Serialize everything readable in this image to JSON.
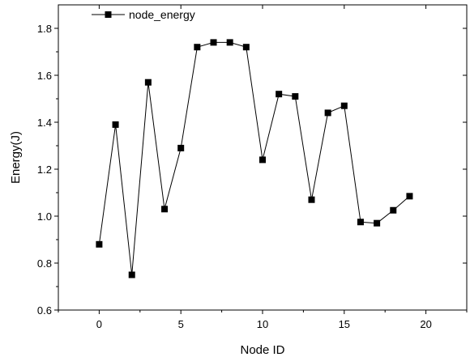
{
  "chart_data": {
    "type": "line",
    "xlabel": "Node ID",
    "ylabel": "Energy(J)",
    "xlim": [
      -2.5,
      22.5
    ],
    "ylim": [
      0.6,
      1.9
    ],
    "xticks": [
      0,
      5,
      10,
      15,
      20
    ],
    "yticks": [
      0.6,
      0.8,
      1.0,
      1.2,
      1.4,
      1.6,
      1.8
    ],
    "x_tick_labels": [
      "0",
      "5",
      "10",
      "15",
      "20"
    ],
    "y_tick_labels": [
      "0.6",
      "0.8",
      "1.0",
      "1.2",
      "1.4",
      "1.6",
      "1.8"
    ],
    "grid": false,
    "legend_position": "top-left",
    "series": [
      {
        "name": "node_energy",
        "marker": "square",
        "color": "#000000",
        "x": [
          0,
          1,
          2,
          3,
          4,
          5,
          6,
          7,
          8,
          9,
          10,
          11,
          12,
          13,
          14,
          15,
          16,
          17,
          18,
          19
        ],
        "y": [
          0.88,
          1.39,
          0.75,
          1.57,
          1.03,
          1.29,
          1.72,
          1.74,
          1.74,
          1.72,
          1.24,
          1.52,
          1.51,
          1.07,
          1.44,
          1.47,
          0.975,
          0.97,
          1.025,
          1.085
        ]
      }
    ]
  }
}
